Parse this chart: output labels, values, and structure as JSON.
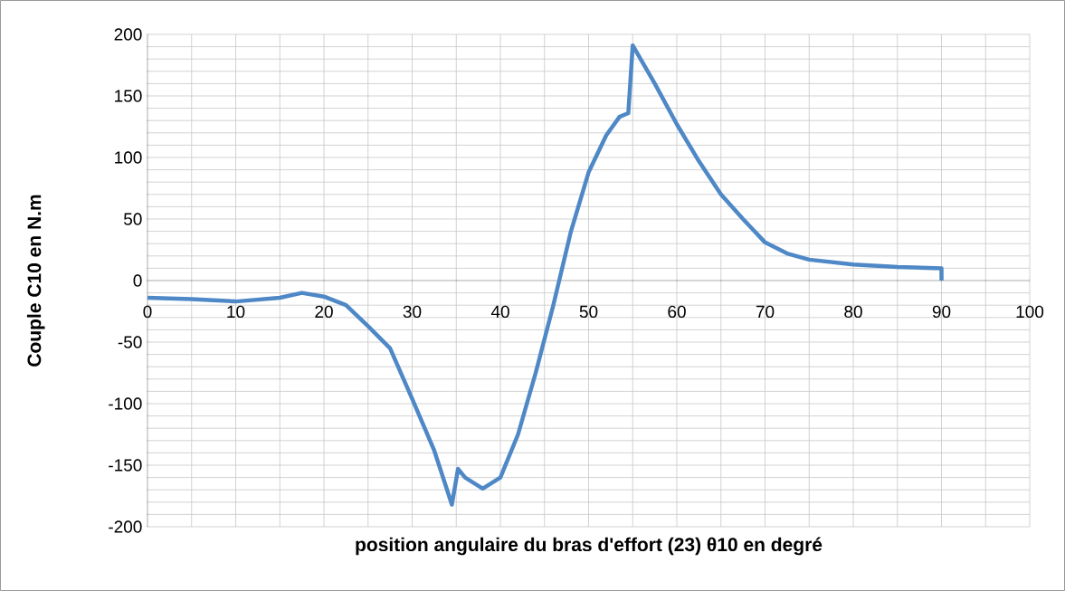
{
  "chart_data": {
    "type": "line",
    "xlabel": "position angulaire du bras d'effort (23) θ10 en degré",
    "ylabel": "Couple C10 en N.m",
    "xlim": [
      0,
      100
    ],
    "ylim": [
      -200,
      200
    ],
    "xticks": [
      0,
      10,
      20,
      30,
      40,
      50,
      60,
      70,
      80,
      90,
      100
    ],
    "yticks": [
      -200,
      -150,
      -100,
      -50,
      0,
      50,
      100,
      150,
      200
    ],
    "grid": true,
    "marker": "none",
    "line_style": "solid",
    "series": [
      {
        "color": "#4f88c6",
        "x": [
          0,
          5,
          10,
          15,
          17.5,
          20,
          22.5,
          25,
          27.5,
          30,
          32.5,
          34.5,
          35.2,
          36,
          38,
          40,
          42,
          44,
          46,
          48,
          50,
          52,
          53.5,
          54.5,
          55,
          57.5,
          60,
          62.5,
          65,
          67.5,
          70,
          72.5,
          75,
          80,
          85,
          90,
          90
        ],
        "values": [
          -14,
          -15,
          -17,
          -14,
          -10,
          -13,
          -20,
          -37,
          -55,
          -96,
          -138,
          -182,
          -153,
          -160,
          -169,
          -160,
          -125,
          -75,
          -20,
          40,
          88,
          118,
          133,
          136,
          191,
          160,
          127,
          97,
          70,
          50,
          31,
          22,
          17,
          13,
          11,
          10,
          0
        ]
      }
    ]
  }
}
